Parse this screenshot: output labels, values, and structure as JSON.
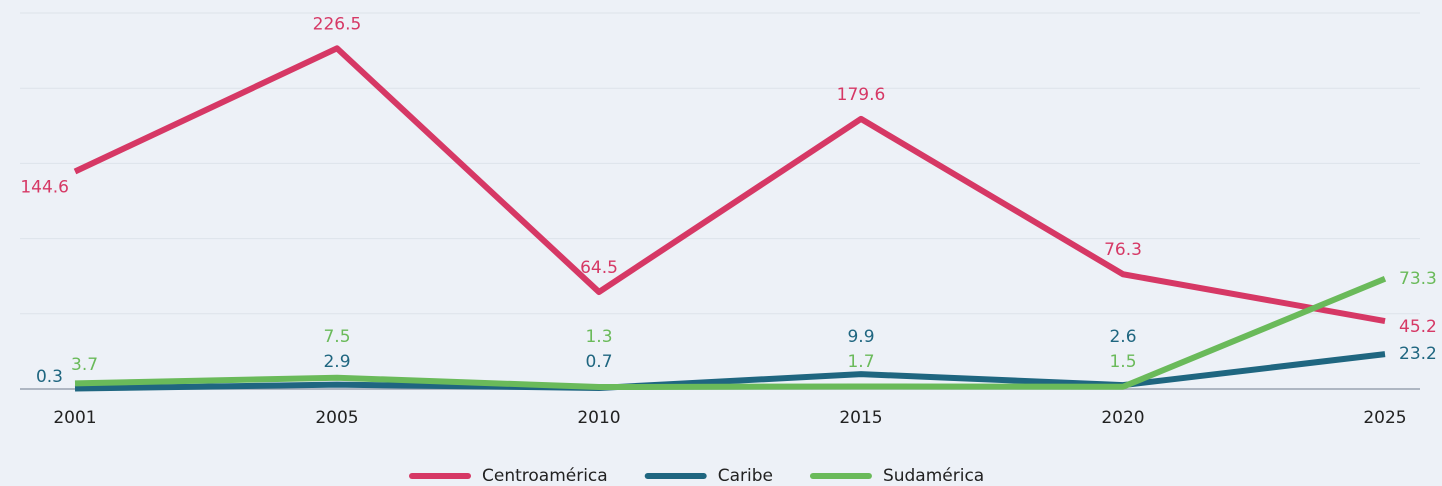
{
  "chart_data": {
    "type": "line",
    "categories": [
      "2001",
      "2005",
      "2010",
      "2015",
      "2020",
      "2025"
    ],
    "series": [
      {
        "name": "Centroamérica",
        "color": "#d63865",
        "values": [
          144.6,
          226.5,
          64.5,
          179.6,
          76.3,
          45.2
        ]
      },
      {
        "name": "Caribe",
        "color": "#1f6680",
        "values": [
          0.3,
          2.9,
          0.7,
          9.9,
          2.6,
          23.2
        ]
      },
      {
        "name": "Sudamérica",
        "color": "#6aba5a",
        "values": [
          3.7,
          7.5,
          1.3,
          1.7,
          1.5,
          73.3
        ]
      }
    ],
    "ylim": [
      0,
      250
    ],
    "yticks": [
      0,
      50,
      100,
      150,
      200,
      250
    ],
    "grid": true,
    "legend": "bottom"
  }
}
